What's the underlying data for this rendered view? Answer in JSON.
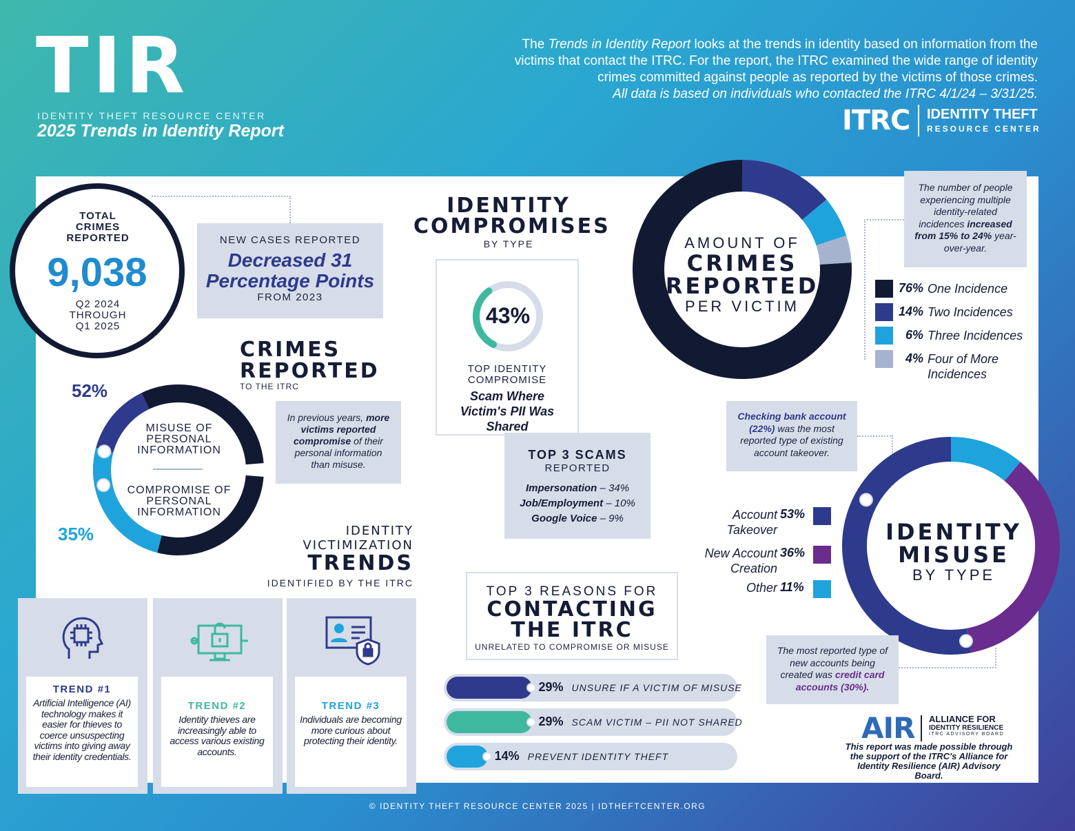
{
  "header": {
    "logo": "TIR",
    "org": "IDENTITY THEFT RESOURCE CENTER",
    "title": "2025 Trends in Identity Report",
    "intro_p1": "The ",
    "intro_it": "Trends in Identity Report",
    "intro_p2": " looks at the trends in identity based on information from the victims that contact the ITRC. For the report, the ITRC examined the wide range of identity crimes committed against people as reported by the victims of those crimes.",
    "intro_note": "All data is based on individuals who contacted the ITRC 4/1/24 – 3/31/25.",
    "itrc_logo": "ITRC",
    "itrc_name1": "IDENTITY THEFT",
    "itrc_name2": "RESOURCE CENTER"
  },
  "total": {
    "label": "TOTAL CRIMES REPORTED",
    "value": "9,038",
    "period1": "Q2 2024",
    "period2": "THROUGH",
    "period3": "Q1 2025"
  },
  "new_cases": {
    "label": "NEW CASES REPORTED",
    "line1": "Decreased 31",
    "line2": "Percentage Points",
    "from": "FROM 2023"
  },
  "crimes_reported": {
    "title1": "CRIMES",
    "title2": "REPORTED",
    "sub": "TO THE ITRC",
    "misuse_pct": "52%",
    "misuse_value": 52,
    "misuse_label": "MISUSE OF PERSONAL INFORMATION",
    "compromise_pct": "35%",
    "compromise_value": 35,
    "compromise_label": "COMPROMISE OF PERSONAL INFORMATION",
    "note_a": "In previous years, ",
    "note_b": "more victims reported compromise",
    "note_c": " of their personal information than misuse.",
    "colors": {
      "misuse": "#2e3a8c",
      "compromise": "#1fa3dc",
      "rest": "#121a33"
    }
  },
  "compromises": {
    "title1": "IDENTITY",
    "title2": "COMPROMISES",
    "sub": "BY TYPE",
    "pct": "43%",
    "value": 43,
    "label1": "TOP IDENTITY",
    "label2": "COMPROMISE",
    "desc": "Scam Where Victim's PII Was Shared"
  },
  "scams": {
    "title": "TOP 3 SCAMS",
    "sub": "REPORTED",
    "items": [
      {
        "name": "Impersonation",
        "val": " – 34%"
      },
      {
        "name": "Job/Employment",
        "val": " – 10%"
      },
      {
        "name": "Google Voice",
        "val": " – 9%"
      }
    ]
  },
  "per_victim": {
    "title1": "AMOUNT OF",
    "title2": "CRIMES",
    "title3": "REPORTED",
    "title4": "PER VICTIM",
    "note_a": "The number of people experiencing multiple identity-related incidences ",
    "note_b": "increased from 15% to 24%",
    "note_c": " year-over-year.",
    "legend": [
      {
        "pct": "76%",
        "label": "One Incidence",
        "color": "#121a33",
        "value": 76
      },
      {
        "pct": "14%",
        "label": "Two Incidences",
        "color": "#2e3a8c",
        "value": 14
      },
      {
        "pct": "6%",
        "label": "Three Incidences",
        "color": "#1fa3dc",
        "value": 6
      },
      {
        "pct": "4%",
        "label": "Four of More Incidences",
        "color": "#a6b3cf",
        "value": 4
      }
    ]
  },
  "misuse": {
    "title1": "IDENTITY",
    "title2": "MISUSE",
    "title3": "BY TYPE",
    "note_a": "Checking bank account (22%)",
    "note_b": " was the most reported type of existing account takeover.",
    "note2_a": "The most reported type of new accounts being created was ",
    "note2_b": "credit card accounts (30%).",
    "legend": [
      {
        "label": "Account Takeover",
        "pct": "53%",
        "color": "#2e3a8c",
        "value": 53
      },
      {
        "label": "New Account Creation",
        "pct": "36%",
        "color": "#6a2c8e",
        "value": 36
      },
      {
        "label": "Other",
        "pct": "11%",
        "color": "#1fa3dc",
        "value": 11
      }
    ]
  },
  "trends": {
    "title1": "IDENTITY",
    "title2": "VICTIMIZATION",
    "title3": "TRENDS",
    "sub": "IDENTIFIED BY THE ITRC",
    "items": [
      {
        "label": "TREND #1",
        "text": "Artificial Intelligence (AI) technology makes it easier for thieves to coerce unsuspecting victims into giving away their identity credentials.",
        "color": "#2e3a8c"
      },
      {
        "label": "TREND #2",
        "text": "Identity thieves are increasingly able to access various existing accounts.",
        "color": "#3fb8a0"
      },
      {
        "label": "TREND #3",
        "text": "Individuals are becoming more curious about protecting their identity.",
        "color": "#1fa3dc"
      }
    ]
  },
  "reasons": {
    "title1": "TOP 3 REASONS FOR",
    "title2": "CONTACTING",
    "title3": "THE ITRC",
    "sub": "UNRELATED TO COMPROMISE OR MISUSE",
    "items": [
      {
        "pct": "29%",
        "label": "UNSURE IF A VICTIM OF MISUSE",
        "value": 29,
        "color": "#2e3a8c"
      },
      {
        "pct": "29%",
        "label": "SCAM VICTIM – PII NOT SHARED",
        "value": 29,
        "color": "#3fb8a0"
      },
      {
        "pct": "14%",
        "label": "PREVENT IDENTITY THEFT",
        "value": 14,
        "color": "#1fa3dc"
      }
    ]
  },
  "air": {
    "logo": "AIR",
    "name1": "ALLIANCE FOR",
    "name2": "IDENTITY RESILIENCE",
    "name3": "ITRC ADVISORY BOARD",
    "note": "This report was made possible through the support of the ITRC's Alliance for Identity Resilience (AIR) Advisory Board."
  },
  "footer": "© IDENTITY THEFT RESOURCE CENTER 2025 | IDTHEFTCENTER.ORG"
}
